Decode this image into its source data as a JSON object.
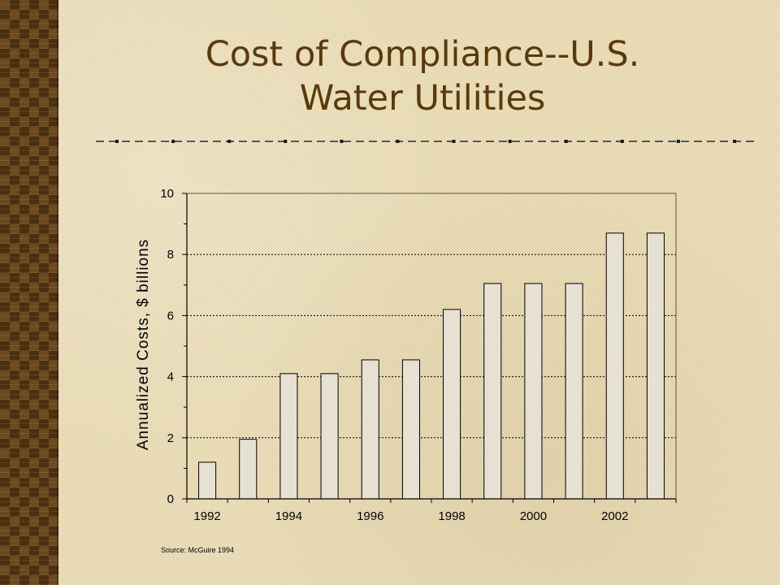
{
  "slide": {
    "title_line1": "Cost of Compliance--U.S.",
    "title_line2": "Water Utilities",
    "source": "Source:  McGuire 1994"
  },
  "colors": {
    "title": "#5a3a0c",
    "background": "#e9dcb6",
    "bar_fill": "#e6e1d3",
    "bar_stroke": "#000000"
  },
  "chart_data": {
    "type": "bar",
    "categories": [
      "1992",
      "1993",
      "1994",
      "1995",
      "1996",
      "1997",
      "1998",
      "1999",
      "2000",
      "2001",
      "2002",
      "2003"
    ],
    "values": [
      1.2,
      1.95,
      4.1,
      4.1,
      4.55,
      4.55,
      6.2,
      7.05,
      7.05,
      7.05,
      8.7,
      8.7
    ],
    "x_tick_labels": [
      "1992",
      "",
      "1994",
      "",
      "1996",
      "",
      "1998",
      "",
      "2000",
      "",
      "2002",
      ""
    ],
    "y_ticks": [
      0,
      2,
      4,
      6,
      8,
      10
    ],
    "title": "",
    "xlabel": "",
    "ylabel": "Annualized Costs, $ billions",
    "ylim": [
      0,
      10
    ],
    "grid": "horizontal dashed",
    "legend": "none"
  }
}
